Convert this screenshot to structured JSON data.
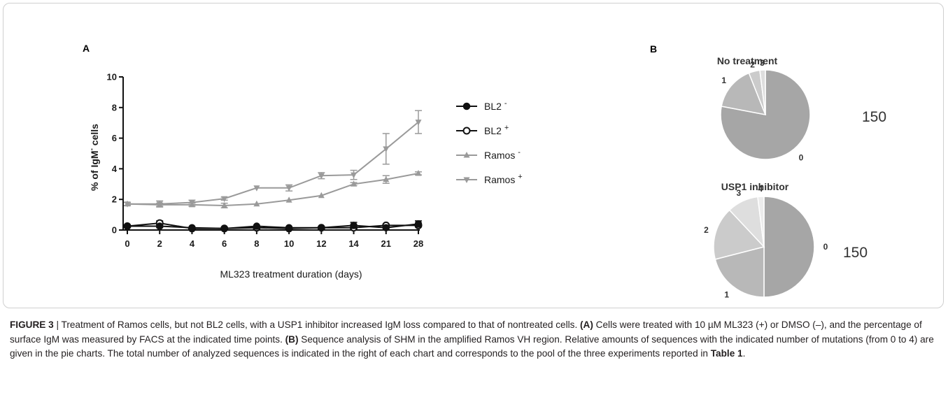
{
  "panels": {
    "a": "A",
    "b": "B"
  },
  "chart_data": [
    {
      "type": "line",
      "ylabel_main": "% of IgM",
      "ylabel_sup": "-",
      "ylabel_tail": " cells",
      "xlabel": "ML323 treatment duration (days)",
      "ylim": [
        0,
        10
      ],
      "yticks": [
        0,
        2,
        4,
        6,
        8,
        10
      ],
      "categories": [
        "0",
        "2",
        "4",
        "6",
        "8",
        "10",
        "12",
        "14",
        "21",
        "28"
      ],
      "grid": false,
      "legend_position": "right",
      "series": [
        {
          "name": "BL2",
          "name_sup": "-",
          "marker": "circle-filled",
          "color": "#111111",
          "values": [
            0.25,
            0.25,
            0.15,
            0.1,
            0.25,
            0.15,
            0.15,
            0.3,
            0.15,
            0.4
          ],
          "errors": [
            0.05,
            0.1,
            0.05,
            0.05,
            0.05,
            0.05,
            0.05,
            0.2,
            0.05,
            0.2
          ]
        },
        {
          "name": "BL2",
          "name_sup": "+",
          "marker": "circle-open",
          "color": "#111111",
          "values": [
            0.25,
            0.45,
            0.1,
            0.1,
            0.15,
            0.1,
            0.15,
            0.15,
            0.3,
            0.3
          ],
          "errors": [
            0.05,
            0.15,
            0.05,
            0.05,
            0.05,
            0.05,
            0.05,
            0.05,
            0.05,
            0.1
          ]
        },
        {
          "name": "Ramos",
          "name_sup": "-",
          "marker": "triangle-up",
          "color": "#9a9a9a",
          "values": [
            1.7,
            1.65,
            1.65,
            1.6,
            1.7,
            1.95,
            2.25,
            3.0,
            3.3,
            3.7
          ],
          "errors": [
            0.1,
            0.1,
            0.1,
            0.15,
            0.05,
            0.05,
            0.05,
            0.1,
            0.25,
            0.1
          ]
        },
        {
          "name": "Ramos",
          "name_sup": "+",
          "marker": "triangle-down",
          "color": "#9a9a9a",
          "values": [
            1.7,
            1.7,
            1.8,
            2.05,
            2.75,
            2.75,
            3.55,
            3.6,
            5.3,
            7.05
          ],
          "errors": [
            0.1,
            0.2,
            0.15,
            0.1,
            0.05,
            0.2,
            0.2,
            0.3,
            1.0,
            0.75
          ]
        }
      ]
    },
    {
      "type": "pie",
      "title": "No treatment",
      "total": "150",
      "slices": [
        {
          "label": "0",
          "value": 78,
          "color": "#a6a6a6"
        },
        {
          "label": "1",
          "value": 16,
          "color": "#b8b8b8"
        },
        {
          "label": "2",
          "value": 4,
          "color": "#cbcbcb"
        },
        {
          "label": "3",
          "value": 2,
          "color": "#dedede"
        }
      ]
    },
    {
      "type": "pie",
      "title": "USP1 inhibitor",
      "total": "150",
      "slices": [
        {
          "label": "0",
          "value": 50,
          "color": "#a6a6a6"
        },
        {
          "label": "1",
          "value": 21,
          "color": "#b8b8b8"
        },
        {
          "label": "2",
          "value": 17,
          "color": "#cbcbcb"
        },
        {
          "label": "3",
          "value": 10,
          "color": "#dedede"
        },
        {
          "label": "4",
          "value": 2,
          "color": "#ececec"
        }
      ]
    }
  ],
  "caption": {
    "figure_label": "FIGURE 3",
    "text_1": " | Treatment of Ramos cells, but not BL2 cells, with a USP1 inhibitor increased IgM loss compared to that of nontreated cells. ",
    "ref_a": "(A)",
    "text_2": " Cells were treated with 10 µM ML323 (+) or DMSO (–), and the percentage of surface IgM was measured by FACS at the indicated time points. ",
    "ref_b": "(B)",
    "text_3": " Sequence analysis of SHM in the amplified Ramos VH region. Relative amounts of sequences with the indicated number of mutations (from 0 to 4) are given in the pie charts. The total number of analyzed sequences is indicated in the right of each chart and corresponds to the pool of the three experiments reported in ",
    "table_ref": "Table 1",
    "text_4": "."
  }
}
